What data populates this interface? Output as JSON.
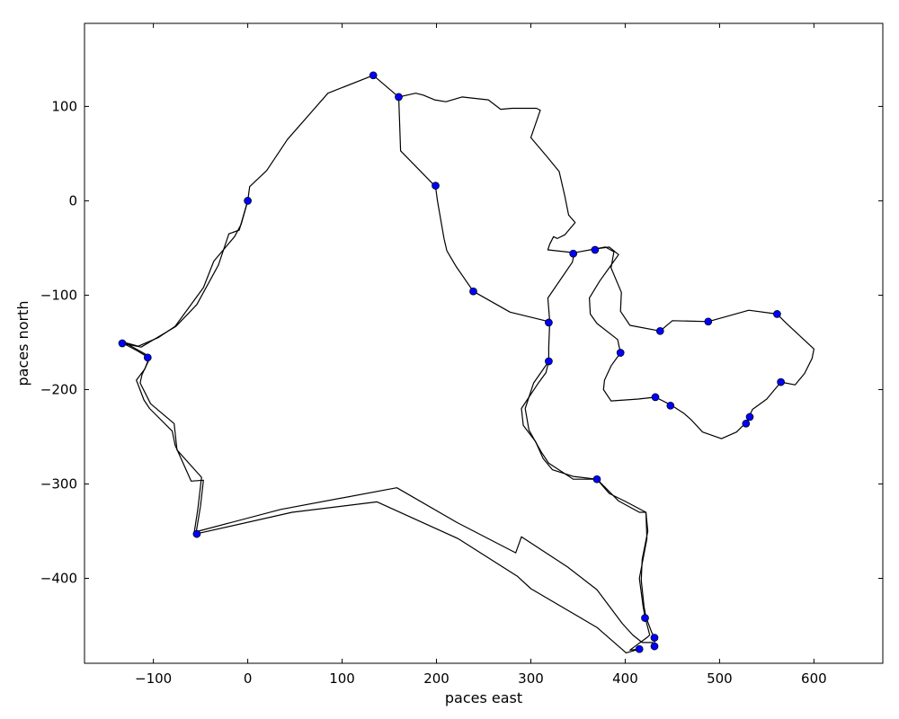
{
  "chart_data": {
    "type": "line",
    "xlabel": "paces east",
    "ylabel": "paces north",
    "xlim": [
      -173,
      673
    ],
    "ylim": [
      -490,
      188
    ],
    "xticks": [
      -100,
      0,
      100,
      200,
      300,
      400,
      500,
      600
    ],
    "yticks": [
      -400,
      -300,
      -200,
      -100,
      0,
      100
    ],
    "xtick_labels": [
      "−100",
      "0",
      "100",
      "200",
      "300",
      "400",
      "500",
      "600"
    ],
    "ytick_labels": [
      "−400",
      "−300",
      "−200",
      "−100",
      "0",
      "100"
    ],
    "grid": false,
    "line_color": "#000000",
    "marker_color": "#0000ff",
    "series": [
      {
        "values": [
          [
            0,
            0
          ],
          [
            2,
            15
          ],
          [
            20,
            32
          ],
          [
            42,
            65
          ],
          [
            85,
            114
          ],
          [
            133,
            133
          ],
          [
            160,
            110
          ],
          [
            178,
            114
          ],
          [
            186,
            112
          ],
          [
            198,
            107
          ],
          [
            210,
            105
          ],
          [
            227,
            110
          ],
          [
            255,
            107
          ],
          [
            268,
            97
          ],
          [
            280,
            98
          ],
          [
            306,
            98
          ],
          [
            310,
            96
          ],
          [
            300,
            67
          ],
          [
            317,
            47
          ],
          [
            330,
            31
          ],
          [
            336,
            5
          ],
          [
            340,
            -15
          ],
          [
            347,
            -23
          ],
          [
            336,
            -36
          ],
          [
            328,
            -40
          ],
          [
            324,
            -38
          ],
          [
            320,
            -46
          ],
          [
            318,
            -52
          ],
          [
            346,
            -55
          ],
          [
            368,
            -51
          ],
          [
            379,
            -49
          ],
          [
            388,
            -54
          ],
          [
            385,
            -71
          ],
          [
            396,
            -97
          ],
          [
            395,
            -117
          ],
          [
            405,
            -132
          ],
          [
            437,
            -138
          ],
          [
            450,
            -127
          ],
          [
            488,
            -128
          ],
          [
            531,
            -116
          ],
          [
            561,
            -120
          ],
          [
            571,
            -130
          ],
          [
            600,
            -157
          ],
          [
            598,
            -167
          ],
          [
            590,
            -183
          ],
          [
            580,
            -195
          ],
          [
            565,
            -192
          ],
          [
            550,
            -210
          ],
          [
            535,
            -221
          ],
          [
            531,
            -229
          ],
          [
            528,
            -235
          ],
          [
            518,
            -245
          ],
          [
            502,
            -252
          ],
          [
            482,
            -245
          ],
          [
            470,
            -232
          ],
          [
            462,
            -225
          ],
          [
            448,
            -216
          ],
          [
            432,
            -208
          ],
          [
            414,
            -210
          ],
          [
            385,
            -212
          ],
          [
            377,
            -200
          ],
          [
            378,
            -190
          ],
          [
            385,
            -175
          ],
          [
            395,
            -161
          ],
          [
            392,
            -147
          ],
          [
            370,
            -130
          ],
          [
            363,
            -120
          ],
          [
            362,
            -103
          ],
          [
            373,
            -85
          ],
          [
            383,
            -71
          ],
          [
            393,
            -57
          ],
          [
            383,
            -49
          ],
          [
            368,
            -51
          ],
          [
            346,
            -55
          ],
          [
            344,
            -65
          ],
          [
            318,
            -103
          ],
          [
            320,
            -128
          ],
          [
            319,
            -155
          ],
          [
            319,
            -170
          ],
          [
            303,
            -193
          ],
          [
            294,
            -220
          ],
          [
            298,
            -243
          ],
          [
            311,
            -266
          ],
          [
            319,
            -278
          ],
          [
            345,
            -295
          ],
          [
            370,
            -295
          ],
          [
            378,
            -303
          ],
          [
            393,
            -318
          ],
          [
            415,
            -330
          ],
          [
            422,
            -330
          ],
          [
            424,
            -350
          ],
          [
            418,
            -380
          ],
          [
            417,
            -402
          ],
          [
            420,
            -430
          ],
          [
            422,
            -441
          ],
          [
            428,
            -457
          ],
          [
            431,
            -463
          ],
          [
            431,
            -470
          ],
          [
            430,
            -472
          ],
          [
            429,
            -468
          ],
          [
            418,
            -468
          ],
          [
            408,
            -460
          ],
          [
            397,
            -448
          ],
          [
            370,
            -412
          ],
          [
            339,
            -388
          ],
          [
            290,
            -356
          ],
          [
            284,
            -373
          ],
          [
            222,
            -341
          ],
          [
            158,
            -304
          ],
          [
            35,
            -327
          ],
          [
            -56,
            -351
          ],
          [
            -57,
            -353
          ],
          [
            -53,
            -327
          ],
          [
            -49,
            -293
          ],
          [
            -75,
            -264
          ],
          [
            -78,
            -236
          ],
          [
            -103,
            -215
          ],
          [
            -114,
            -193
          ],
          [
            -112,
            -184
          ],
          [
            -103,
            -165
          ],
          [
            -107,
            -165
          ],
          [
            -117,
            -159
          ],
          [
            -130,
            -152
          ],
          [
            -133,
            -151
          ],
          [
            -113,
            -155
          ],
          [
            -76,
            -133
          ],
          [
            -54,
            -110
          ],
          [
            -31,
            -68
          ],
          [
            -20,
            -35
          ],
          [
            -9,
            -31
          ],
          [
            0,
            0
          ]
        ]
      },
      {
        "values": [
          [
            160,
            110
          ],
          [
            162,
            53
          ],
          [
            199,
            15
          ],
          [
            201,
            0
          ],
          [
            208,
            -40
          ],
          [
            211,
            -53
          ],
          [
            221,
            -70
          ],
          [
            239,
            -96
          ],
          [
            278,
            -118
          ],
          [
            319,
            -128
          ]
        ]
      },
      {
        "values": [
          [
            319,
            -170
          ],
          [
            316,
            -182
          ],
          [
            308,
            -193
          ],
          [
            290,
            -220
          ],
          [
            292,
            -238
          ],
          [
            305,
            -255
          ],
          [
            313,
            -273
          ],
          [
            323,
            -285
          ],
          [
            345,
            -292
          ],
          [
            370,
            -295
          ],
          [
            383,
            -310
          ],
          [
            401,
            -319
          ],
          [
            422,
            -330
          ],
          [
            423,
            -358
          ],
          [
            415,
            -400
          ],
          [
            419,
            -430
          ],
          [
            421,
            -441
          ],
          [
            426,
            -460
          ],
          [
            424,
            -462
          ],
          [
            405,
            -476
          ],
          [
            415,
            -475
          ],
          [
            401,
            -479
          ],
          [
            370,
            -452
          ],
          [
            300,
            -411
          ],
          [
            286,
            -398
          ],
          [
            223,
            -358
          ],
          [
            137,
            -319
          ],
          [
            47,
            -330
          ],
          [
            -55,
            -353
          ],
          [
            -50,
            -323
          ],
          [
            -47,
            -296
          ],
          [
            -60,
            -297
          ],
          [
            -77,
            -259
          ],
          [
            -80,
            -244
          ],
          [
            -104,
            -220
          ],
          [
            -110,
            -211
          ],
          [
            -118,
            -190
          ],
          [
            -109,
            -178
          ],
          [
            -104,
            -165
          ],
          [
            -131,
            -150
          ],
          [
            -116,
            -154
          ],
          [
            -95,
            -145
          ],
          [
            -77,
            -133
          ],
          [
            -47,
            -92
          ],
          [
            -36,
            -64
          ],
          [
            -14,
            -38
          ],
          [
            -7,
            -25
          ],
          [
            0,
            0
          ]
        ]
      }
    ],
    "markers": [
      [
        0,
        0
      ],
      [
        133,
        133
      ],
      [
        160,
        110
      ],
      [
        199,
        16
      ],
      [
        239,
        -96
      ],
      [
        -133,
        -151
      ],
      [
        -106,
        -166
      ],
      [
        -54,
        -353
      ],
      [
        319,
        -129
      ],
      [
        319,
        -170
      ],
      [
        345,
        -56
      ],
      [
        368,
        -52
      ],
      [
        370,
        -295
      ],
      [
        437,
        -138
      ],
      [
        488,
        -128
      ],
      [
        561,
        -120
      ],
      [
        395,
        -161
      ],
      [
        432,
        -208
      ],
      [
        448,
        -217
      ],
      [
        565,
        -192
      ],
      [
        532,
        -229
      ],
      [
        528,
        -236
      ],
      [
        421,
        -442
      ],
      [
        431,
        -463
      ],
      [
        431,
        -472
      ],
      [
        415,
        -475
      ]
    ]
  }
}
